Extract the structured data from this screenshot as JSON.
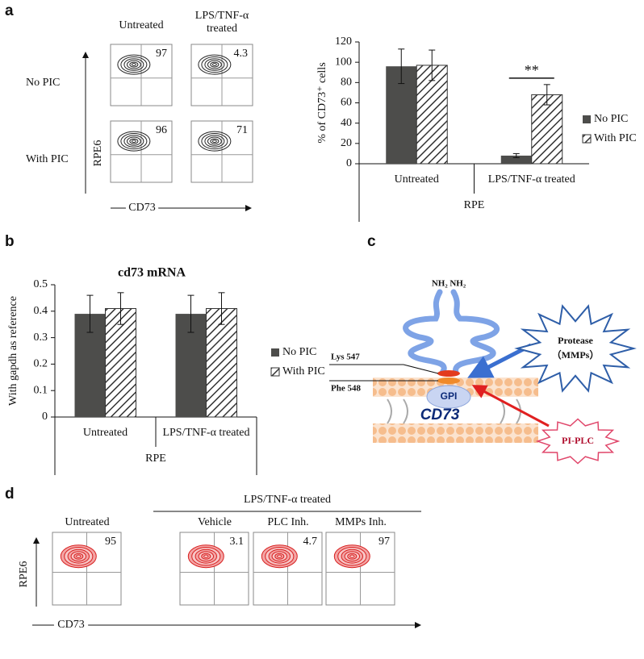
{
  "flow_a": {
    "panel_label": "a",
    "columns": [
      "Untreated",
      "LPS/TNF-α treated"
    ],
    "rows": [
      "No PIC",
      "With PIC"
    ],
    "y_axis_label": "RPE6",
    "x_axis_label": "CD73",
    "percentages": [
      [
        97,
        4.3
      ],
      [
        96,
        71
      ]
    ]
  },
  "chart_data": [
    {
      "type": "bar",
      "ylabel": "% of CD73⁺ cells",
      "categories": [
        "Untreated",
        "LPS/TNF-α treated"
      ],
      "group_label": "RPE",
      "series": [
        {
          "name": "No PIC",
          "color": "#4d4d4b",
          "fill": "solid",
          "values": [
            96,
            8
          ],
          "errors": [
            17,
            2
          ]
        },
        {
          "name": "With PIC",
          "color": "#333333",
          "fill": "hatch",
          "values": [
            97,
            68
          ],
          "errors": [
            15,
            10
          ]
        }
      ],
      "ylim": [
        0,
        120
      ],
      "yticks": [
        0,
        20,
        40,
        60,
        80,
        100,
        120
      ],
      "annotation": "**"
    },
    {
      "type": "bar",
      "panel_label": "b",
      "title": "cd73 mRNA",
      "ylabel": "With gapdh as reference",
      "categories": [
        "Untreated",
        "LPS/TNF-α treated"
      ],
      "group_label": "RPE",
      "series": [
        {
          "name": "No PIC",
          "color": "#4d4d4b",
          "fill": "solid",
          "values": [
            0.39,
            0.39
          ],
          "errors": [
            0.07,
            0.07
          ]
        },
        {
          "name": "With PIC",
          "color": "#333333",
          "fill": "hatch",
          "values": [
            0.41,
            0.41
          ],
          "errors": [
            0.06,
            0.06
          ]
        }
      ],
      "ylim": [
        0,
        0.5
      ],
      "yticks": [
        0,
        0.1,
        0.2,
        0.3,
        0.4,
        0.5
      ]
    }
  ],
  "diagram_c": {
    "panel_label": "c",
    "terminus": "NH₂ NH₂",
    "site_1": "Lys 547",
    "site_2": "Phe 548",
    "anchor": "GPI",
    "protein": "CD73",
    "protease": "Protease",
    "protease_type": "（MMPs）",
    "lipase": "PI-PLC"
  },
  "flow_d": {
    "panel_label": "d",
    "group_label": "LPS/TNF-α treated",
    "columns": [
      "Untreated",
      "Vehicle",
      "PLC Inh.",
      "MMPs Inh."
    ],
    "y_axis_label": "RPE6",
    "x_axis_label": "CD73",
    "percentages": [
      95,
      3.1,
      4.7,
      97
    ]
  }
}
